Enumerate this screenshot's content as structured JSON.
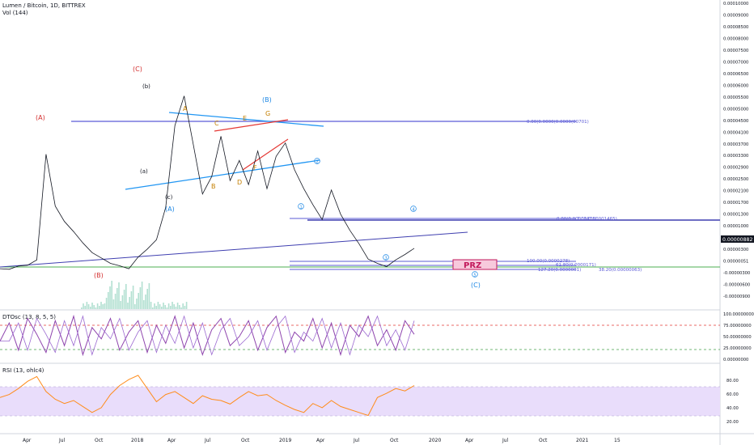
{
  "header": {
    "symbol_line": "Lumen / Bitcoin, 1D, BITTREX",
    "vol_label": "Vol (144)",
    "dtosc_label": "DTOsc (13, 8, 5, 5)",
    "rsi_label": "RSI (13, ohlc4)"
  },
  "colors": {
    "price": "#131722",
    "fib": "#5b5bd6",
    "blue_line": "#2196f3",
    "red_line": "#e53935",
    "green_line": "#4caf50",
    "red_label": "#d32f2f",
    "blue_label": "#1e88e5",
    "orange_label": "#c47f00",
    "dtosc": "#8e44ad",
    "dtosc_line2": "#9c6ad1",
    "rsi": "#ff8c1a",
    "rsi_band": "#e9ddfb",
    "prz_fill": "#f7c9dc",
    "prz_border": "#c2185b",
    "prz_text": "#c2185b",
    "last_price_bg": "#131722"
  },
  "annotations": {
    "waves_red": [
      "(A)",
      "(B)",
      "(C)"
    ],
    "waves_blue": [
      "(A)",
      "(B)",
      "(C)"
    ],
    "waves_small": [
      "(a)",
      "(b)",
      "(c)"
    ],
    "waves_orange": [
      "A",
      "B",
      "C",
      "D",
      "E",
      "F",
      "G"
    ],
    "circled": [
      "1",
      "2",
      "3",
      "4",
      "5"
    ],
    "prz": "PRZ",
    "fib_top": "0.00(0.0000(0.0000(00701)",
    "fib_mid_left": "0.00(0.00001476)",
    "fib_mid_right": "0.00(0.00001465)",
    "fib_100": "100.00(0.0000278)",
    "fib_618": "61.80(0.0000171)",
    "fib_127": "127.20(0.0000001)",
    "fib_382": "38.20(0.00000063)"
  },
  "chart_data": [
    {
      "type": "line",
      "title": "Lumen / Bitcoin, 1D, BITTREX",
      "x_ticks": [
        "Apr",
        "Jul",
        "Oct",
        "2018",
        "Apr",
        "Jul",
        "Oct",
        "2019",
        "Apr",
        "Jul",
        "Oct",
        "2020",
        "Apr",
        "Jul",
        "Oct",
        "2021",
        "15"
      ],
      "y_ticks": [
        "0.00010000",
        "0.00009000",
        "0.00008500",
        "0.00008000",
        "0.00007500",
        "0.00007000",
        "0.00006500",
        "0.00006000",
        "0.00005500",
        "0.00005000",
        "0.00004500",
        "0.00004100",
        "0.00003700",
        "0.00003300",
        "0.00002900",
        "0.00002500",
        "0.00002100",
        "0.00001700",
        "0.00001300",
        "0.00001000",
        "0.00000600",
        "0.00000300",
        "0.00000051",
        "-0.00000300",
        "-0.00000600",
        "-0.00000900"
      ],
      "last_price": "0.00000882",
      "series": [
        {
          "values": [
            1.2e-06,
            1e-06,
            2.2e-06,
            2.5e-06,
            4.5e-06,
            4.38e-05,
            2.45e-05,
            1.88e-05,
            1.5e-05,
            1.08e-05,
            7.2e-06,
            5.2e-06,
            3.2e-06,
            2.3e-06,
            1.2e-06,
            5.5e-06,
            8.5e-06,
            1.2e-05,
            2.4e-05,
            5.45e-05,
            6.55e-05,
            4.75e-05,
            2.9e-05,
            3.55e-05,
            5.05e-05,
            3.4e-05,
            4.15e-05,
            3.25e-05,
            4.5e-05,
            3.1e-05,
            4.3e-05,
            4.8e-05,
            3.8e-05,
            3.1e-05,
            2.5e-05,
            1.95e-05,
            3.05e-05,
            2.15e-05,
            1.55e-05,
            1.05e-05,
            4.8e-06,
            3.2e-06,
            2e-06,
            4.5e-06,
            6.5e-06,
            8.8e-06
          ]
        }
      ]
    },
    {
      "type": "line",
      "title": "DTOsc (13, 8, 5, 5)",
      "y_ticks": [
        "100.00000000",
        "75.00000000",
        "50.00000000",
        "25.00000000",
        "0.00000000"
      ],
      "ylim": [
        0,
        100
      ],
      "series": [
        {
          "values": [
            40,
            80,
            20,
            90,
            55,
            15,
            85,
            30,
            95,
            10,
            70,
            45,
            90,
            20,
            60,
            85,
            15,
            75,
            35,
            95,
            25,
            80,
            10,
            65,
            90,
            30,
            50,
            85,
            20,
            70,
            95,
            15,
            60,
            40,
            90,
            25,
            80,
            10,
            75,
            50,
            95,
            30,
            65,
            20,
            85,
            55
          ]
        }
      ]
    },
    {
      "type": "line",
      "title": "RSI (13, ohlc4)",
      "y_ticks": [
        "80.00",
        "60.00",
        "40.00",
        "20.00"
      ],
      "ylim": [
        0,
        100
      ],
      "series": [
        {
          "values": [
            55,
            60,
            70,
            82,
            90,
            65,
            52,
            45,
            50,
            40,
            30,
            38,
            60,
            75,
            85,
            92,
            70,
            48,
            60,
            65,
            55,
            45,
            58,
            52,
            50,
            44,
            55,
            65,
            58,
            60,
            50,
            42,
            35,
            30,
            45,
            38,
            50,
            40,
            35,
            30,
            25,
            55,
            62,
            70,
            66,
            75
          ]
        }
      ]
    }
  ]
}
